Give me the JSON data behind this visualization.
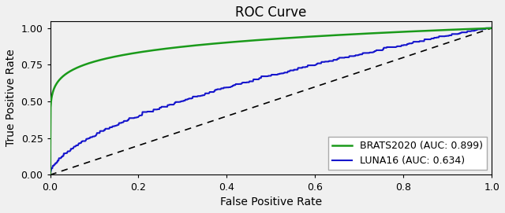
{
  "title": "ROC Curve",
  "xlabel": "False Positive Rate",
  "ylabel": "True Positive Rate",
  "xlim": [
    0.0,
    1.0
  ],
  "ylim": [
    0.0,
    1.05
  ],
  "xticks": [
    0.0,
    0.2,
    0.4,
    0.6,
    0.8,
    1.0
  ],
  "yticks": [
    0.0,
    0.25,
    0.5,
    0.75,
    1.0
  ],
  "brats_label": "BRATS2020 (AUC: 0.899)",
  "luna_label": "LUNA16 (AUC: 0.634)",
  "brats_color": "#1a9a1a",
  "luna_color": "#1515cc",
  "diag_color": "black",
  "brats_auc": 0.899,
  "luna_auc": 0.634,
  "figsize": [
    6.4,
    2.71
  ],
  "dpi": 100,
  "bg_color": "#f0f0f0"
}
